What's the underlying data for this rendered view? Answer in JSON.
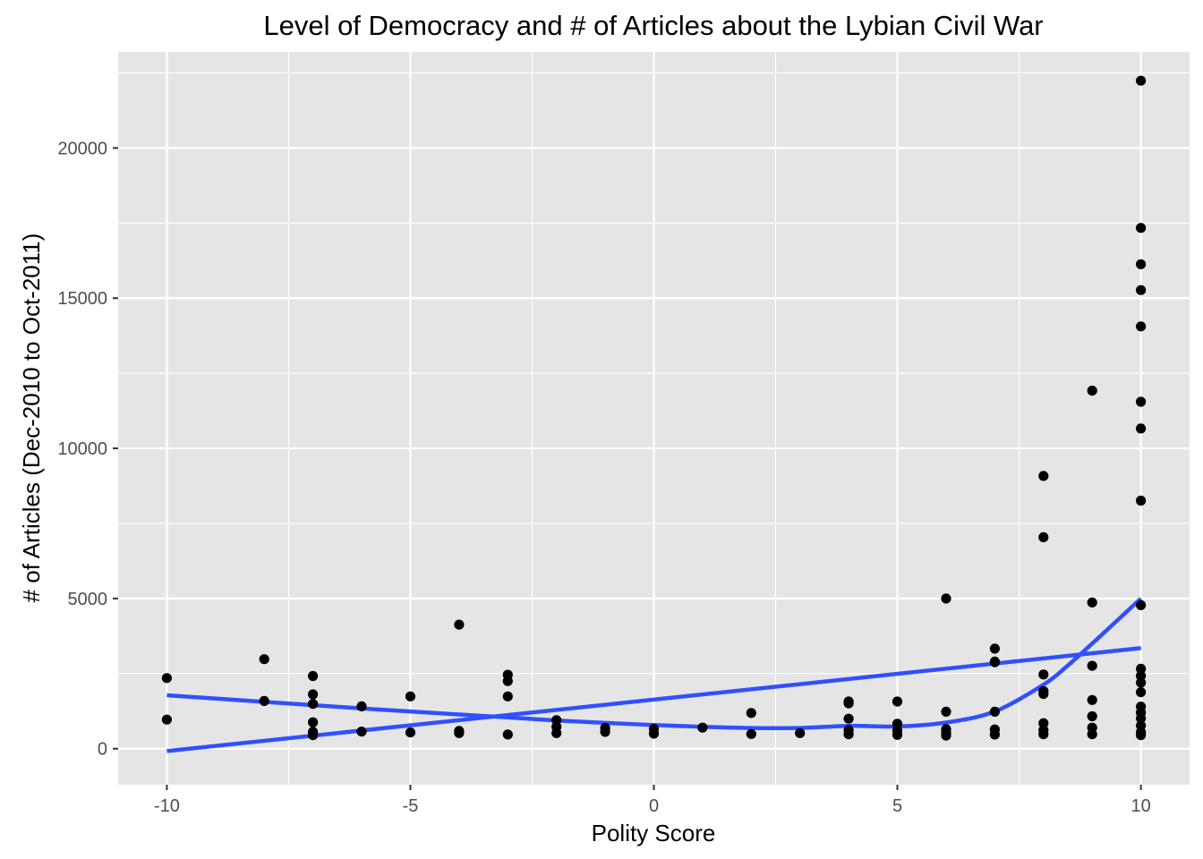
{
  "chart_data": {
    "type": "scatter",
    "title": "Level of Democracy and # of Articles about the Lybian Civil War",
    "xlabel": "Polity Score",
    "ylabel": "# of Articles (Dec-2010 to Oct-2011)",
    "xlim": [
      -11,
      11
    ],
    "ylim": [
      -1200,
      23200
    ],
    "x_ticks": [
      -10,
      -5,
      0,
      5,
      10
    ],
    "x_tick_labels": [
      "-10",
      "-5",
      "0",
      "5",
      "10"
    ],
    "y_ticks": [
      0,
      5000,
      10000,
      15000,
      20000
    ],
    "y_tick_labels": [
      "0",
      "5000",
      "10000",
      "15000",
      "20000"
    ],
    "grid": true,
    "legend": "none",
    "colors": {
      "panel_background": "#e5e5e5",
      "grid_line": "#ffffff",
      "point": "#000000",
      "fit_line": "#3050ff"
    },
    "points": [
      {
        "x": -10,
        "y": 2350
      },
      {
        "x": -10,
        "y": 970
      },
      {
        "x": -8,
        "y": 2980
      },
      {
        "x": -8,
        "y": 1590
      },
      {
        "x": -7,
        "y": 2420
      },
      {
        "x": -7,
        "y": 1810
      },
      {
        "x": -7,
        "y": 1490
      },
      {
        "x": -7,
        "y": 880
      },
      {
        "x": -7,
        "y": 560
      },
      {
        "x": -7,
        "y": 450
      },
      {
        "x": -6,
        "y": 1410
      },
      {
        "x": -6,
        "y": 570
      },
      {
        "x": -5,
        "y": 1740
      },
      {
        "x": -5,
        "y": 540
      },
      {
        "x": -4,
        "y": 4130
      },
      {
        "x": -4,
        "y": 590
      },
      {
        "x": -4,
        "y": 520
      },
      {
        "x": -3,
        "y": 2460
      },
      {
        "x": -3,
        "y": 2250
      },
      {
        "x": -3,
        "y": 1740
      },
      {
        "x": -3,
        "y": 470
      },
      {
        "x": -2,
        "y": 950
      },
      {
        "x": -2,
        "y": 730
      },
      {
        "x": -2,
        "y": 520
      },
      {
        "x": -1,
        "y": 690
      },
      {
        "x": -1,
        "y": 560
      },
      {
        "x": 0,
        "y": 660
      },
      {
        "x": 0,
        "y": 500
      },
      {
        "x": 1,
        "y": 700
      },
      {
        "x": 2,
        "y": 1190
      },
      {
        "x": 2,
        "y": 490
      },
      {
        "x": 3,
        "y": 520
      },
      {
        "x": 4,
        "y": 1570
      },
      {
        "x": 4,
        "y": 1510
      },
      {
        "x": 4,
        "y": 1000
      },
      {
        "x": 4,
        "y": 620
      },
      {
        "x": 4,
        "y": 480
      },
      {
        "x": 5,
        "y": 1570
      },
      {
        "x": 5,
        "y": 830
      },
      {
        "x": 5,
        "y": 600
      },
      {
        "x": 5,
        "y": 460
      },
      {
        "x": 6,
        "y": 5000
      },
      {
        "x": 6,
        "y": 1230
      },
      {
        "x": 6,
        "y": 650
      },
      {
        "x": 6,
        "y": 530
      },
      {
        "x": 6,
        "y": 440
      },
      {
        "x": 7,
        "y": 3330
      },
      {
        "x": 7,
        "y": 2900
      },
      {
        "x": 7,
        "y": 2880
      },
      {
        "x": 7,
        "y": 1230
      },
      {
        "x": 7,
        "y": 640
      },
      {
        "x": 7,
        "y": 470
      },
      {
        "x": 8,
        "y": 9080
      },
      {
        "x": 8,
        "y": 7040
      },
      {
        "x": 8,
        "y": 2470
      },
      {
        "x": 8,
        "y": 1920
      },
      {
        "x": 8,
        "y": 1820
      },
      {
        "x": 8,
        "y": 850
      },
      {
        "x": 8,
        "y": 620
      },
      {
        "x": 8,
        "y": 480
      },
      {
        "x": 9,
        "y": 11920
      },
      {
        "x": 9,
        "y": 4870
      },
      {
        "x": 9,
        "y": 2760
      },
      {
        "x": 9,
        "y": 1620
      },
      {
        "x": 9,
        "y": 1080
      },
      {
        "x": 9,
        "y": 700
      },
      {
        "x": 9,
        "y": 480
      },
      {
        "x": 10,
        "y": 22240
      },
      {
        "x": 10,
        "y": 17340
      },
      {
        "x": 10,
        "y": 16130
      },
      {
        "x": 10,
        "y": 15270
      },
      {
        "x": 10,
        "y": 14060
      },
      {
        "x": 10,
        "y": 11550
      },
      {
        "x": 10,
        "y": 10660
      },
      {
        "x": 10,
        "y": 8260
      },
      {
        "x": 10,
        "y": 4780
      },
      {
        "x": 10,
        "y": 2660
      },
      {
        "x": 10,
        "y": 2430
      },
      {
        "x": 10,
        "y": 2200
      },
      {
        "x": 10,
        "y": 1880
      },
      {
        "x": 10,
        "y": 1400
      },
      {
        "x": 10,
        "y": 1200
      },
      {
        "x": 10,
        "y": 1010
      },
      {
        "x": 10,
        "y": 770
      },
      {
        "x": 10,
        "y": 550
      },
      {
        "x": 10,
        "y": 450
      }
    ],
    "series": [
      {
        "type": "linear-fit",
        "x": [
          -10,
          10
        ],
        "y": [
          -80,
          3350
        ]
      },
      {
        "type": "loess",
        "x": [
          -10,
          -8,
          -6,
          -4,
          -3,
          -2,
          -1,
          0,
          1,
          2,
          3,
          4,
          5,
          6,
          7,
          8,
          8.5,
          9,
          9.5,
          10
        ],
        "y": [
          1780,
          1560,
          1340,
          1140,
          1040,
          940,
          860,
          790,
          730,
          690,
          690,
          760,
          740,
          870,
          1240,
          2130,
          2770,
          3500,
          4250,
          5000
        ]
      }
    ]
  }
}
